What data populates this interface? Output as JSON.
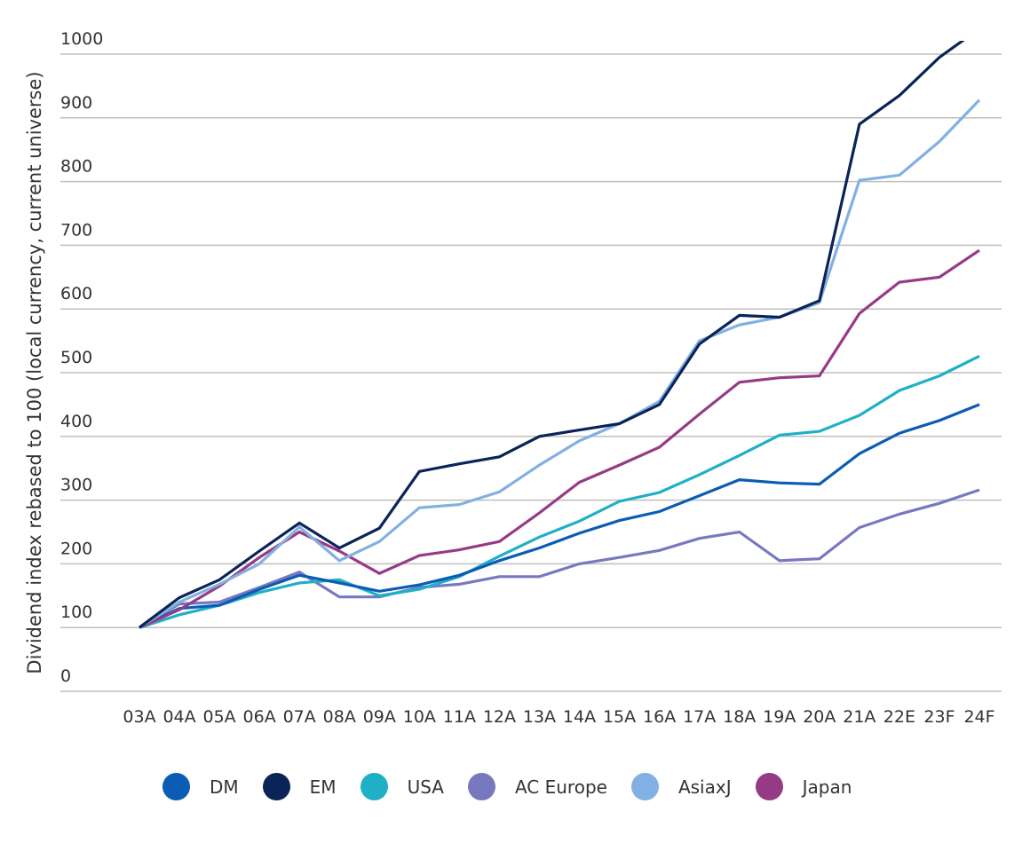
{
  "chart_data": {
    "type": "line",
    "title": "",
    "xlabel": "",
    "ylabel": "Dividend index rebased to 100 (local currency, current universe)",
    "ylim": [
      0,
      1000
    ],
    "yticks": [
      0,
      100,
      200,
      300,
      400,
      500,
      600,
      700,
      800,
      900,
      1000
    ],
    "grid": true,
    "legend_position": "bottom",
    "categories": [
      "03A",
      "04A",
      "05A",
      "06A",
      "07A",
      "08A",
      "09A",
      "10A",
      "11A",
      "12A",
      "13A",
      "14A",
      "15A",
      "16A",
      "17A",
      "18A",
      "19A",
      "20A",
      "21A",
      "22E",
      "23F",
      "24F"
    ],
    "series": [
      {
        "name": "DM",
        "color": "#0b5cb5",
        "values": [
          100,
          130,
          135,
          160,
          182,
          170,
          157,
          167,
          182,
          205,
          225,
          248,
          268,
          282,
          307,
          332,
          327,
          325,
          373,
          405,
          425,
          450
        ]
      },
      {
        "name": "EM",
        "color": "#0a2458",
        "values": [
          100,
          147,
          175,
          220,
          264,
          225,
          256,
          345,
          357,
          368,
          400,
          410,
          420,
          450,
          545,
          590,
          587,
          613,
          890,
          935,
          995,
          1040
        ]
      },
      {
        "name": "USA",
        "color": "#1fb0c6",
        "values": [
          100,
          120,
          135,
          155,
          170,
          175,
          150,
          160,
          180,
          212,
          242,
          267,
          298,
          312,
          340,
          370,
          402,
          408,
          433,
          472,
          495,
          526
        ]
      },
      {
        "name": "AC Europe",
        "color": "#7878c0",
        "values": [
          100,
          137,
          140,
          163,
          187,
          148,
          148,
          163,
          168,
          180,
          180,
          200,
          210,
          221,
          240,
          250,
          205,
          208,
          257,
          278,
          295,
          316
        ]
      },
      {
        "name": "AsiaxJ",
        "color": "#82b0e2",
        "values": [
          100,
          140,
          168,
          200,
          258,
          205,
          235,
          288,
          293,
          313,
          355,
          393,
          420,
          455,
          550,
          575,
          587,
          610,
          802,
          810,
          863,
          928
        ]
      },
      {
        "name": "Japan",
        "color": "#963a85",
        "values": [
          100,
          128,
          165,
          210,
          250,
          220,
          185,
          213,
          222,
          235,
          280,
          328,
          355,
          383,
          435,
          485,
          492,
          495,
          593,
          642,
          650,
          692
        ]
      }
    ]
  },
  "colors": {
    "grid": "#bfbfbf",
    "text": "#333333"
  }
}
